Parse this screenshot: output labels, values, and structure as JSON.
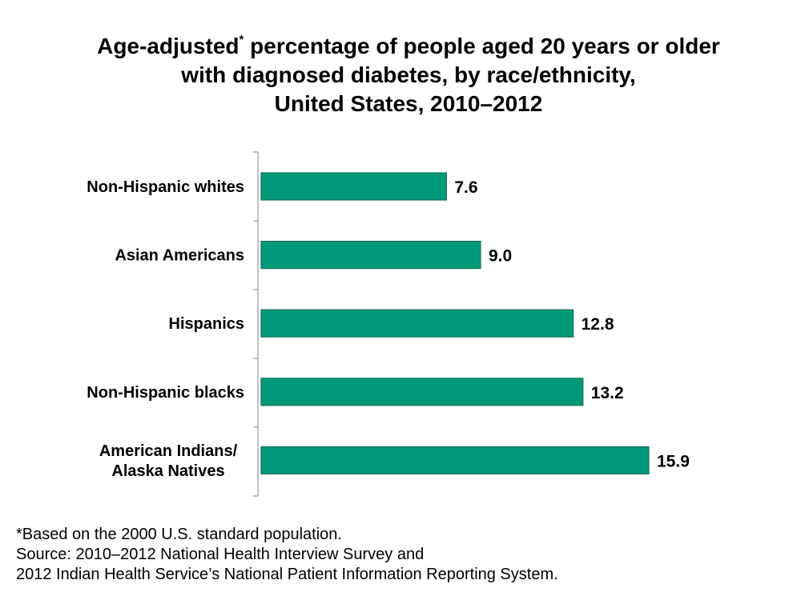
{
  "title": {
    "line1_before_sup": "Age-adjusted",
    "line1_sup": "*",
    "line1_after_sup": " percentage of people aged 20 years or older",
    "line2": "with diagnosed diabetes, by race/ethnicity,",
    "line3": "United States, 2010–2012"
  },
  "footnotes": {
    "note": "*Based on the 2000 U.S. standard population.",
    "source_line1": "Source: 2010–2012 National Health Interview Survey and",
    "source_line2": "2012 Indian Health Service’s National Patient Information Reporting System."
  },
  "colors": {
    "bar_fill": "#009a78",
    "bar_stroke": "#1d6f5c",
    "axis": "#9a9a9a"
  },
  "chart_data": {
    "type": "bar",
    "orientation": "horizontal",
    "title": "Age-adjusted* percentage of people aged 20 years or older with diagnosed diabetes, by race/ethnicity, United States, 2010–2012",
    "xlabel": "",
    "ylabel": "",
    "xlim": [
      0,
      18
    ],
    "grid": false,
    "categories": [
      [
        "Non-Hispanic whites"
      ],
      [
        "Asian Americans"
      ],
      [
        "Hispanics"
      ],
      [
        "Non-Hispanic blacks"
      ],
      [
        "American Indians/",
        "Alaska Natives"
      ]
    ],
    "values": [
      7.6,
      9.0,
      12.8,
      13.2,
      15.9
    ],
    "value_labels": [
      "7.6",
      "9.0",
      "12.8",
      "13.2",
      "15.9"
    ]
  }
}
